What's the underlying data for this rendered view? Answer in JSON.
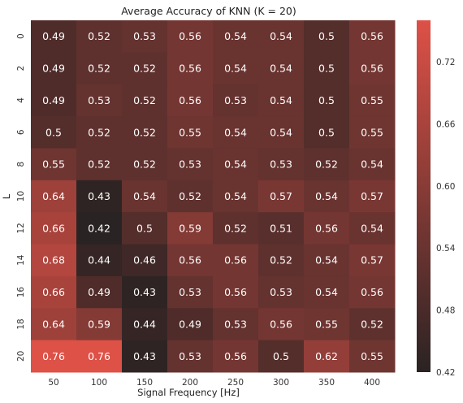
{
  "chart_data": {
    "type": "heatmap",
    "title": "Average Accuracy of KNN (K = 20)",
    "xlabel": "Signal Frequency [Hz]",
    "ylabel": "L",
    "x_categories": [
      "50",
      "100",
      "150",
      "200",
      "250",
      "300",
      "350",
      "400"
    ],
    "y_categories": [
      "0",
      "2",
      "4",
      "6",
      "8",
      "10",
      "12",
      "14",
      "16",
      "18",
      "20"
    ],
    "values": [
      [
        0.49,
        0.52,
        0.53,
        0.56,
        0.54,
        0.54,
        0.5,
        0.56
      ],
      [
        0.49,
        0.52,
        0.52,
        0.56,
        0.54,
        0.54,
        0.5,
        0.56
      ],
      [
        0.49,
        0.53,
        0.52,
        0.56,
        0.53,
        0.54,
        0.5,
        0.55
      ],
      [
        0.5,
        0.52,
        0.52,
        0.55,
        0.54,
        0.54,
        0.5,
        0.55
      ],
      [
        0.55,
        0.52,
        0.52,
        0.53,
        0.54,
        0.53,
        0.52,
        0.54
      ],
      [
        0.64,
        0.43,
        0.54,
        0.52,
        0.54,
        0.57,
        0.54,
        0.57
      ],
      [
        0.66,
        0.42,
        0.5,
        0.59,
        0.52,
        0.51,
        0.56,
        0.54
      ],
      [
        0.68,
        0.44,
        0.46,
        0.56,
        0.56,
        0.52,
        0.54,
        0.57
      ],
      [
        0.66,
        0.49,
        0.43,
        0.53,
        0.56,
        0.53,
        0.54,
        0.56
      ],
      [
        0.64,
        0.59,
        0.44,
        0.49,
        0.53,
        0.56,
        0.55,
        0.52
      ],
      [
        0.76,
        0.76,
        0.43,
        0.53,
        0.56,
        0.5,
        0.62,
        0.55
      ]
    ],
    "colorbar": {
      "vmin": 0.42,
      "vmax": 0.76,
      "ticks": [
        0.42,
        0.48,
        0.54,
        0.6,
        0.66,
        0.72
      ],
      "tick_labels": [
        "0.42",
        "0.48",
        "0.54",
        "0.60",
        "0.66",
        "0.72"
      ],
      "color_low": "#2a2323",
      "color_high": "#dd5147"
    },
    "annotation_color": "#ffffff",
    "axis_text_color": "#333333"
  }
}
